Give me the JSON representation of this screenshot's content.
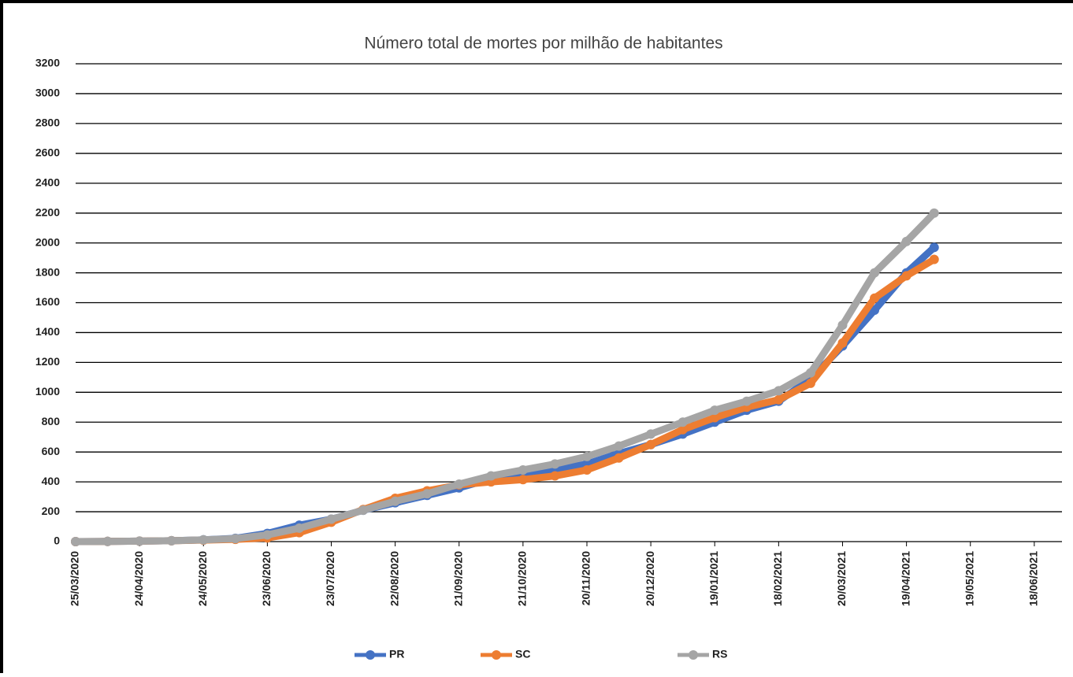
{
  "chart_data": {
    "type": "line",
    "title": "Número total de mortes por milhão de habitantes",
    "x": [
      "2020-03-25",
      "2020-04-09",
      "2020-04-24",
      "2020-05-09",
      "2020-05-24",
      "2020-06-08",
      "2020-06-23",
      "2020-07-08",
      "2020-07-23",
      "2020-08-07",
      "2020-08-22",
      "2020-09-06",
      "2020-09-21",
      "2020-10-06",
      "2020-10-21",
      "2020-11-05",
      "2020-11-20",
      "2020-12-05",
      "2020-12-20",
      "2021-01-04",
      "2021-01-19",
      "2021-02-03",
      "2021-02-18",
      "2021-03-05",
      "2021-03-20",
      "2021-04-04",
      "2021-04-19",
      "2021-05-02"
    ],
    "series": [
      {
        "name": "PR",
        "color": "#4472c4",
        "values": [
          0,
          1,
          3,
          6,
          12,
          22,
          55,
          110,
          150,
          210,
          260,
          310,
          360,
          420,
          450,
          480,
          520,
          590,
          650,
          720,
          800,
          880,
          940,
          1090,
          1310,
          1550,
          1800,
          1970
        ]
      },
      {
        "name": "SC",
        "color": "#ed7d31",
        "values": [
          0,
          1,
          3,
          6,
          10,
          15,
          25,
          60,
          130,
          215,
          290,
          340,
          380,
          400,
          415,
          440,
          480,
          560,
          650,
          750,
          830,
          900,
          950,
          1060,
          1330,
          1630,
          1780,
          1890
        ]
      },
      {
        "name": "RS",
        "color": "#a5a5a5",
        "values": [
          0,
          1,
          3,
          6,
          12,
          20,
          45,
          90,
          150,
          210,
          270,
          320,
          385,
          440,
          480,
          520,
          570,
          640,
          720,
          800,
          880,
          940,
          1010,
          1130,
          1450,
          1800,
          2010,
          2200
        ]
      }
    ],
    "xlim": [
      "2020-03-25",
      "2021-07-01"
    ],
    "xticks": [
      {
        "value": "2020-03-25",
        "label": "25/03/2020"
      },
      {
        "value": "2020-04-24",
        "label": "24/04/2020"
      },
      {
        "value": "2020-05-24",
        "label": "24/05/2020"
      },
      {
        "value": "2020-06-23",
        "label": "23/06/2020"
      },
      {
        "value": "2020-07-23",
        "label": "23/07/2020"
      },
      {
        "value": "2020-08-22",
        "label": "22/08/2020"
      },
      {
        "value": "2020-09-21",
        "label": "21/09/2020"
      },
      {
        "value": "2020-10-21",
        "label": "21/10/2020"
      },
      {
        "value": "2020-11-20",
        "label": "20/11/2020"
      },
      {
        "value": "2020-12-20",
        "label": "20/12/2020"
      },
      {
        "value": "2021-01-19",
        "label": "19/01/2021"
      },
      {
        "value": "2021-02-18",
        "label": "18/02/2021"
      },
      {
        "value": "2021-03-20",
        "label": "20/03/2021"
      },
      {
        "value": "2021-04-19",
        "label": "19/04/2021"
      },
      {
        "value": "2021-05-19",
        "label": "19/05/2021"
      },
      {
        "value": "2021-06-18",
        "label": "18/06/2021"
      }
    ],
    "ylim": [
      0,
      3200
    ],
    "yticks": [
      0,
      200,
      400,
      600,
      800,
      1000,
      1200,
      1400,
      1600,
      1800,
      2000,
      2200,
      2400,
      2600,
      2800,
      3000,
      3200
    ],
    "grid": true,
    "legend": "bottom"
  }
}
